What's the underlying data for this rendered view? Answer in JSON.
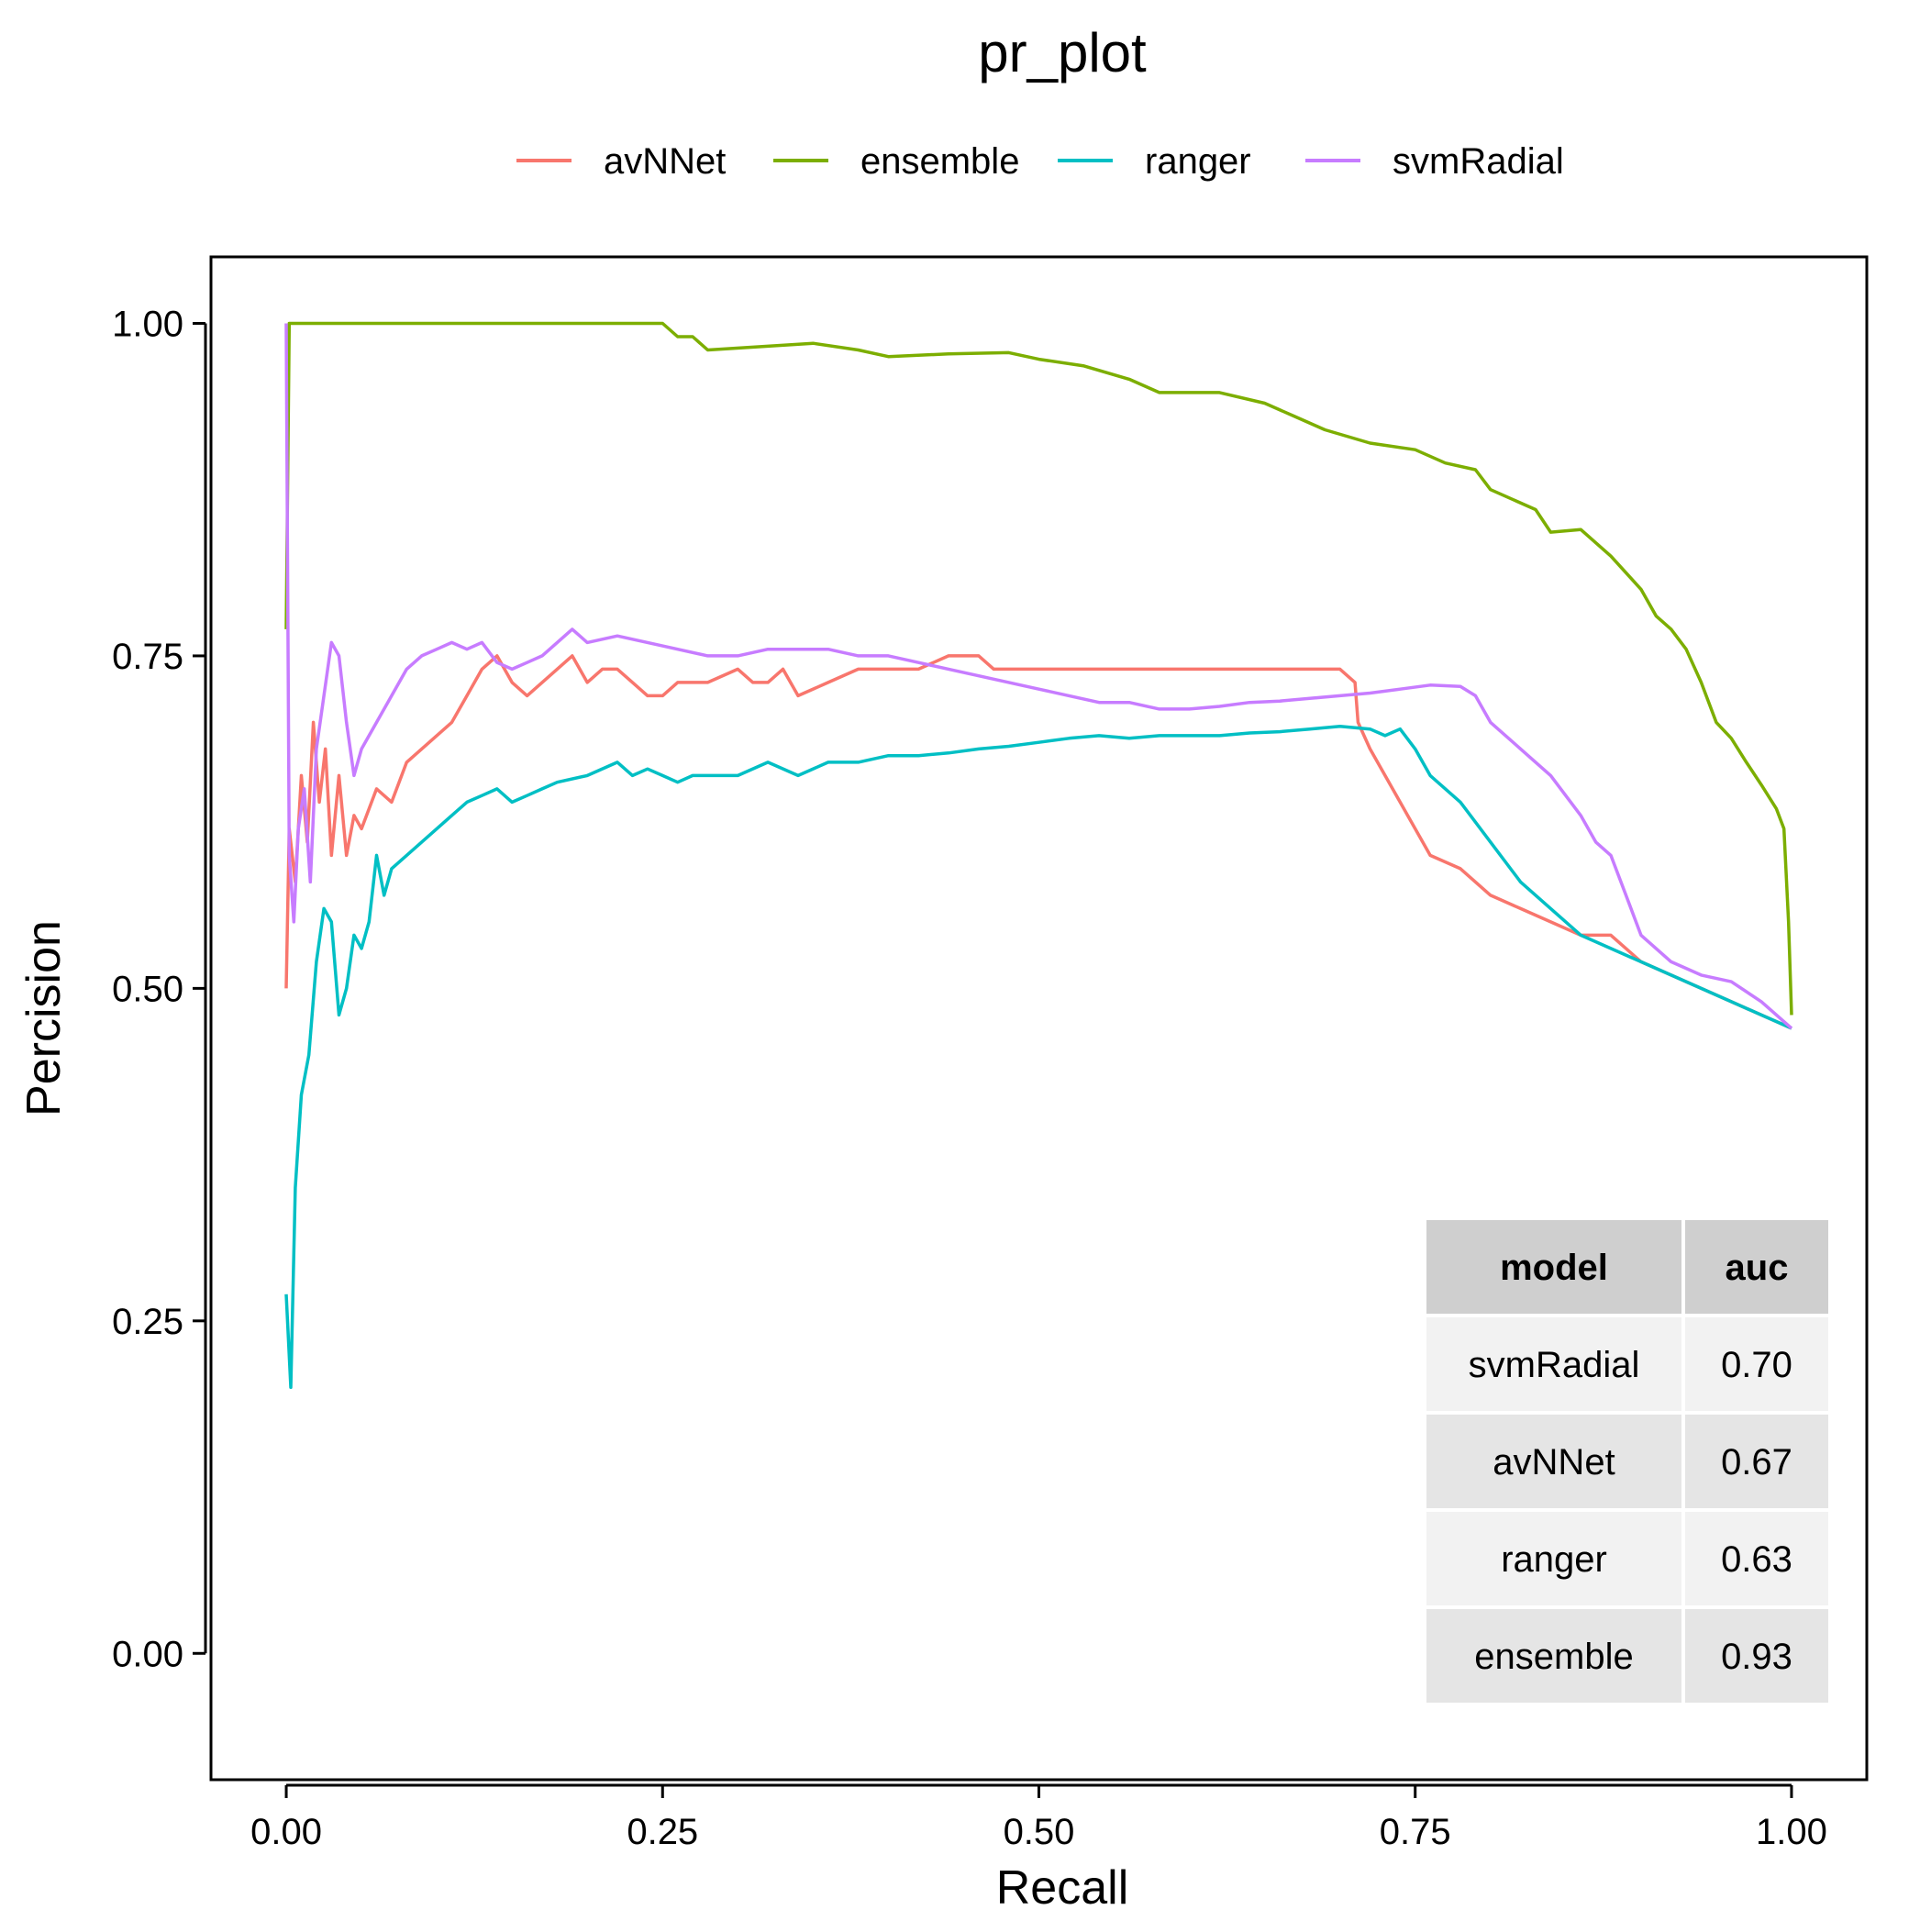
{
  "chart_data": {
    "type": "line",
    "title": "pr_plot",
    "xlabel": "Recall",
    "ylabel": "Percision",
    "xlim": [
      -0.05,
      1.05
    ],
    "ylim": [
      -0.095,
      1.05
    ],
    "x_ticks": [
      "0.00",
      "0.25",
      "0.50",
      "0.75",
      "1.00"
    ],
    "x_tick_values": [
      0,
      0.25,
      0.5,
      0.75,
      1.0
    ],
    "y_ticks": [
      "0.00",
      "0.25",
      "0.50",
      "0.75",
      "1.00"
    ],
    "y_tick_values": [
      0,
      0.25,
      0.5,
      0.75,
      1.0
    ],
    "grid": false,
    "legend_position": "top",
    "series": [
      {
        "name": "avNNet",
        "color": "#F8766D",
        "points": [
          [
            0.0,
            0.5
          ],
          [
            0.002,
            0.62
          ],
          [
            0.006,
            0.58
          ],
          [
            0.01,
            0.66
          ],
          [
            0.014,
            0.61
          ],
          [
            0.018,
            0.7
          ],
          [
            0.022,
            0.64
          ],
          [
            0.026,
            0.68
          ],
          [
            0.03,
            0.6
          ],
          [
            0.035,
            0.66
          ],
          [
            0.04,
            0.6
          ],
          [
            0.045,
            0.63
          ],
          [
            0.05,
            0.62
          ],
          [
            0.06,
            0.65
          ],
          [
            0.07,
            0.64
          ],
          [
            0.08,
            0.67
          ],
          [
            0.09,
            0.68
          ],
          [
            0.1,
            0.69
          ],
          [
            0.11,
            0.7
          ],
          [
            0.12,
            0.72
          ],
          [
            0.13,
            0.74
          ],
          [
            0.14,
            0.75
          ],
          [
            0.15,
            0.73
          ],
          [
            0.16,
            0.72
          ],
          [
            0.18,
            0.74
          ],
          [
            0.19,
            0.75
          ],
          [
            0.2,
            0.73
          ],
          [
            0.21,
            0.74
          ],
          [
            0.22,
            0.74
          ],
          [
            0.23,
            0.73
          ],
          [
            0.24,
            0.72
          ],
          [
            0.25,
            0.72
          ],
          [
            0.26,
            0.73
          ],
          [
            0.28,
            0.73
          ],
          [
            0.3,
            0.74
          ],
          [
            0.31,
            0.73
          ],
          [
            0.32,
            0.73
          ],
          [
            0.33,
            0.74
          ],
          [
            0.34,
            0.72
          ],
          [
            0.36,
            0.73
          ],
          [
            0.38,
            0.74
          ],
          [
            0.4,
            0.74
          ],
          [
            0.42,
            0.74
          ],
          [
            0.44,
            0.75
          ],
          [
            0.46,
            0.75
          ],
          [
            0.47,
            0.74
          ],
          [
            0.5,
            0.74
          ],
          [
            0.52,
            0.74
          ],
          [
            0.54,
            0.74
          ],
          [
            0.57,
            0.74
          ],
          [
            0.59,
            0.74
          ],
          [
            0.61,
            0.74
          ],
          [
            0.63,
            0.74
          ],
          [
            0.65,
            0.74
          ],
          [
            0.68,
            0.74
          ],
          [
            0.7,
            0.74
          ],
          [
            0.71,
            0.73
          ],
          [
            0.712,
            0.7
          ],
          [
            0.72,
            0.68
          ],
          [
            0.73,
            0.66
          ],
          [
            0.74,
            0.64
          ],
          [
            0.75,
            0.62
          ],
          [
            0.76,
            0.6
          ],
          [
            0.78,
            0.59
          ],
          [
            0.8,
            0.57
          ],
          [
            0.82,
            0.56
          ],
          [
            0.84,
            0.55
          ],
          [
            0.86,
            0.54
          ],
          [
            0.88,
            0.54
          ],
          [
            0.9,
            0.52
          ],
          [
            0.92,
            0.51
          ],
          [
            0.94,
            0.5
          ],
          [
            0.96,
            0.49
          ],
          [
            0.98,
            0.48
          ],
          [
            1.0,
            0.47
          ]
        ]
      },
      {
        "name": "ensemble",
        "color": "#7CAE00",
        "points": [
          [
            0.0,
            0.77
          ],
          [
            0.002,
            1.0
          ],
          [
            0.25,
            1.0
          ],
          [
            0.26,
            0.99
          ],
          [
            0.27,
            0.99
          ],
          [
            0.28,
            0.98
          ],
          [
            0.35,
            0.985
          ],
          [
            0.38,
            0.98
          ],
          [
            0.4,
            0.975
          ],
          [
            0.44,
            0.977
          ],
          [
            0.48,
            0.978
          ],
          [
            0.5,
            0.973
          ],
          [
            0.53,
            0.968
          ],
          [
            0.56,
            0.958
          ],
          [
            0.58,
            0.948
          ],
          [
            0.62,
            0.948
          ],
          [
            0.65,
            0.94
          ],
          [
            0.67,
            0.93
          ],
          [
            0.69,
            0.92
          ],
          [
            0.72,
            0.91
          ],
          [
            0.75,
            0.905
          ],
          [
            0.77,
            0.895
          ],
          [
            0.79,
            0.89
          ],
          [
            0.8,
            0.875
          ],
          [
            0.83,
            0.86
          ],
          [
            0.84,
            0.843
          ],
          [
            0.86,
            0.845
          ],
          [
            0.88,
            0.825
          ],
          [
            0.9,
            0.8
          ],
          [
            0.91,
            0.78
          ],
          [
            0.92,
            0.77
          ],
          [
            0.93,
            0.755
          ],
          [
            0.94,
            0.73
          ],
          [
            0.95,
            0.7
          ],
          [
            0.96,
            0.688
          ],
          [
            0.97,
            0.67
          ],
          [
            0.98,
            0.653
          ],
          [
            0.99,
            0.635
          ],
          [
            0.995,
            0.62
          ],
          [
            0.998,
            0.55
          ],
          [
            1.0,
            0.48
          ]
        ]
      },
      {
        "name": "ranger",
        "color": "#00BFC4",
        "points": [
          [
            0.0,
            0.27
          ],
          [
            0.003,
            0.2
          ],
          [
            0.006,
            0.35
          ],
          [
            0.01,
            0.42
          ],
          [
            0.015,
            0.45
          ],
          [
            0.02,
            0.52
          ],
          [
            0.025,
            0.56
          ],
          [
            0.03,
            0.55
          ],
          [
            0.035,
            0.48
          ],
          [
            0.04,
            0.5
          ],
          [
            0.045,
            0.54
          ],
          [
            0.05,
            0.53
          ],
          [
            0.055,
            0.55
          ],
          [
            0.06,
            0.6
          ],
          [
            0.065,
            0.57
          ],
          [
            0.07,
            0.59
          ],
          [
            0.08,
            0.6
          ],
          [
            0.09,
            0.61
          ],
          [
            0.1,
            0.62
          ],
          [
            0.11,
            0.63
          ],
          [
            0.12,
            0.64
          ],
          [
            0.13,
            0.645
          ],
          [
            0.14,
            0.65
          ],
          [
            0.15,
            0.64
          ],
          [
            0.16,
            0.645
          ],
          [
            0.17,
            0.65
          ],
          [
            0.18,
            0.655
          ],
          [
            0.2,
            0.66
          ],
          [
            0.22,
            0.67
          ],
          [
            0.23,
            0.66
          ],
          [
            0.24,
            0.665
          ],
          [
            0.25,
            0.66
          ],
          [
            0.26,
            0.655
          ],
          [
            0.27,
            0.66
          ],
          [
            0.28,
            0.66
          ],
          [
            0.3,
            0.66
          ],
          [
            0.32,
            0.67
          ],
          [
            0.34,
            0.66
          ],
          [
            0.36,
            0.67
          ],
          [
            0.38,
            0.67
          ],
          [
            0.4,
            0.675
          ],
          [
            0.42,
            0.675
          ],
          [
            0.44,
            0.677
          ],
          [
            0.46,
            0.68
          ],
          [
            0.48,
            0.682
          ],
          [
            0.5,
            0.685
          ],
          [
            0.52,
            0.688
          ],
          [
            0.54,
            0.69
          ],
          [
            0.56,
            0.688
          ],
          [
            0.58,
            0.69
          ],
          [
            0.6,
            0.69
          ],
          [
            0.62,
            0.69
          ],
          [
            0.64,
            0.692
          ],
          [
            0.66,
            0.693
          ],
          [
            0.68,
            0.695
          ],
          [
            0.7,
            0.697
          ],
          [
            0.72,
            0.695
          ],
          [
            0.73,
            0.69
          ],
          [
            0.74,
            0.695
          ],
          [
            0.75,
            0.68
          ],
          [
            0.76,
            0.66
          ],
          [
            0.78,
            0.64
          ],
          [
            0.8,
            0.61
          ],
          [
            0.82,
            0.58
          ],
          [
            0.84,
            0.56
          ],
          [
            0.86,
            0.54
          ],
          [
            0.88,
            0.53
          ],
          [
            0.9,
            0.52
          ],
          [
            0.92,
            0.51
          ],
          [
            0.94,
            0.5
          ],
          [
            0.96,
            0.49
          ],
          [
            0.98,
            0.48
          ],
          [
            1.0,
            0.47
          ]
        ]
      },
      {
        "name": "svmRadial",
        "color": "#C77CFF",
        "points": [
          [
            0.0,
            1.0
          ],
          [
            0.002,
            0.6
          ],
          [
            0.005,
            0.55
          ],
          [
            0.008,
            0.62
          ],
          [
            0.012,
            0.65
          ],
          [
            0.016,
            0.58
          ],
          [
            0.02,
            0.68
          ],
          [
            0.025,
            0.72
          ],
          [
            0.03,
            0.76
          ],
          [
            0.035,
            0.75
          ],
          [
            0.04,
            0.7
          ],
          [
            0.045,
            0.66
          ],
          [
            0.05,
            0.68
          ],
          [
            0.06,
            0.7
          ],
          [
            0.07,
            0.72
          ],
          [
            0.08,
            0.74
          ],
          [
            0.09,
            0.75
          ],
          [
            0.1,
            0.755
          ],
          [
            0.11,
            0.76
          ],
          [
            0.12,
            0.755
          ],
          [
            0.13,
            0.76
          ],
          [
            0.14,
            0.745
          ],
          [
            0.15,
            0.74
          ],
          [
            0.16,
            0.745
          ],
          [
            0.17,
            0.75
          ],
          [
            0.18,
            0.76
          ],
          [
            0.19,
            0.77
          ],
          [
            0.2,
            0.76
          ],
          [
            0.22,
            0.765
          ],
          [
            0.24,
            0.76
          ],
          [
            0.26,
            0.755
          ],
          [
            0.28,
            0.75
          ],
          [
            0.3,
            0.75
          ],
          [
            0.32,
            0.755
          ],
          [
            0.34,
            0.755
          ],
          [
            0.36,
            0.755
          ],
          [
            0.38,
            0.75
          ],
          [
            0.4,
            0.75
          ],
          [
            0.42,
            0.745
          ],
          [
            0.44,
            0.74
          ],
          [
            0.46,
            0.735
          ],
          [
            0.48,
            0.73
          ],
          [
            0.5,
            0.725
          ],
          [
            0.52,
            0.72
          ],
          [
            0.54,
            0.715
          ],
          [
            0.56,
            0.715
          ],
          [
            0.58,
            0.71
          ],
          [
            0.6,
            0.71
          ],
          [
            0.62,
            0.712
          ],
          [
            0.64,
            0.715
          ],
          [
            0.66,
            0.716
          ],
          [
            0.68,
            0.718
          ],
          [
            0.7,
            0.72
          ],
          [
            0.72,
            0.722
          ],
          [
            0.74,
            0.725
          ],
          [
            0.76,
            0.728
          ],
          [
            0.78,
            0.727
          ],
          [
            0.79,
            0.72
          ],
          [
            0.8,
            0.7
          ],
          [
            0.82,
            0.68
          ],
          [
            0.84,
            0.66
          ],
          [
            0.86,
            0.63
          ],
          [
            0.87,
            0.61
          ],
          [
            0.88,
            0.6
          ],
          [
            0.89,
            0.57
          ],
          [
            0.9,
            0.54
          ],
          [
            0.92,
            0.52
          ],
          [
            0.94,
            0.51
          ],
          [
            0.96,
            0.505
          ],
          [
            0.98,
            0.49
          ],
          [
            1.0,
            0.47
          ]
        ]
      }
    ],
    "auc_table": {
      "headers": [
        "model",
        "auc"
      ],
      "rows": [
        [
          "svmRadial",
          "0.70"
        ],
        [
          "avNNet",
          "0.67"
        ],
        [
          "ranger",
          "0.63"
        ],
        [
          "ensemble",
          "0.93"
        ]
      ]
    }
  }
}
